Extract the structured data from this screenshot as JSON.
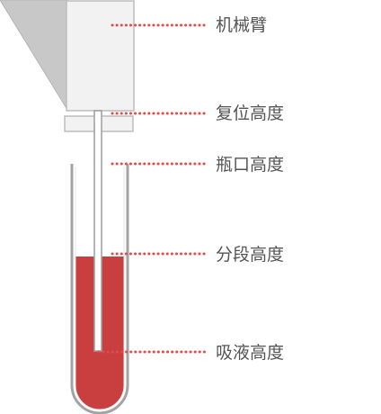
{
  "labels": {
    "robot_arm": "机械臂",
    "reset_height": "复位高度",
    "bottle_mouth_height": "瓶口高度",
    "segment_height": "分段高度",
    "aspirate_height": "吸液高度"
  },
  "colors": {
    "arm_fill": "#f2f2f2",
    "arm_stroke": "#bdbdbd",
    "wedge_fill": "#c8c8c8",
    "tube_stroke": "#9e9e9e",
    "liquid": "#c93e3e",
    "dotted_line": "#e34b4b",
    "label_text": "#555555"
  }
}
